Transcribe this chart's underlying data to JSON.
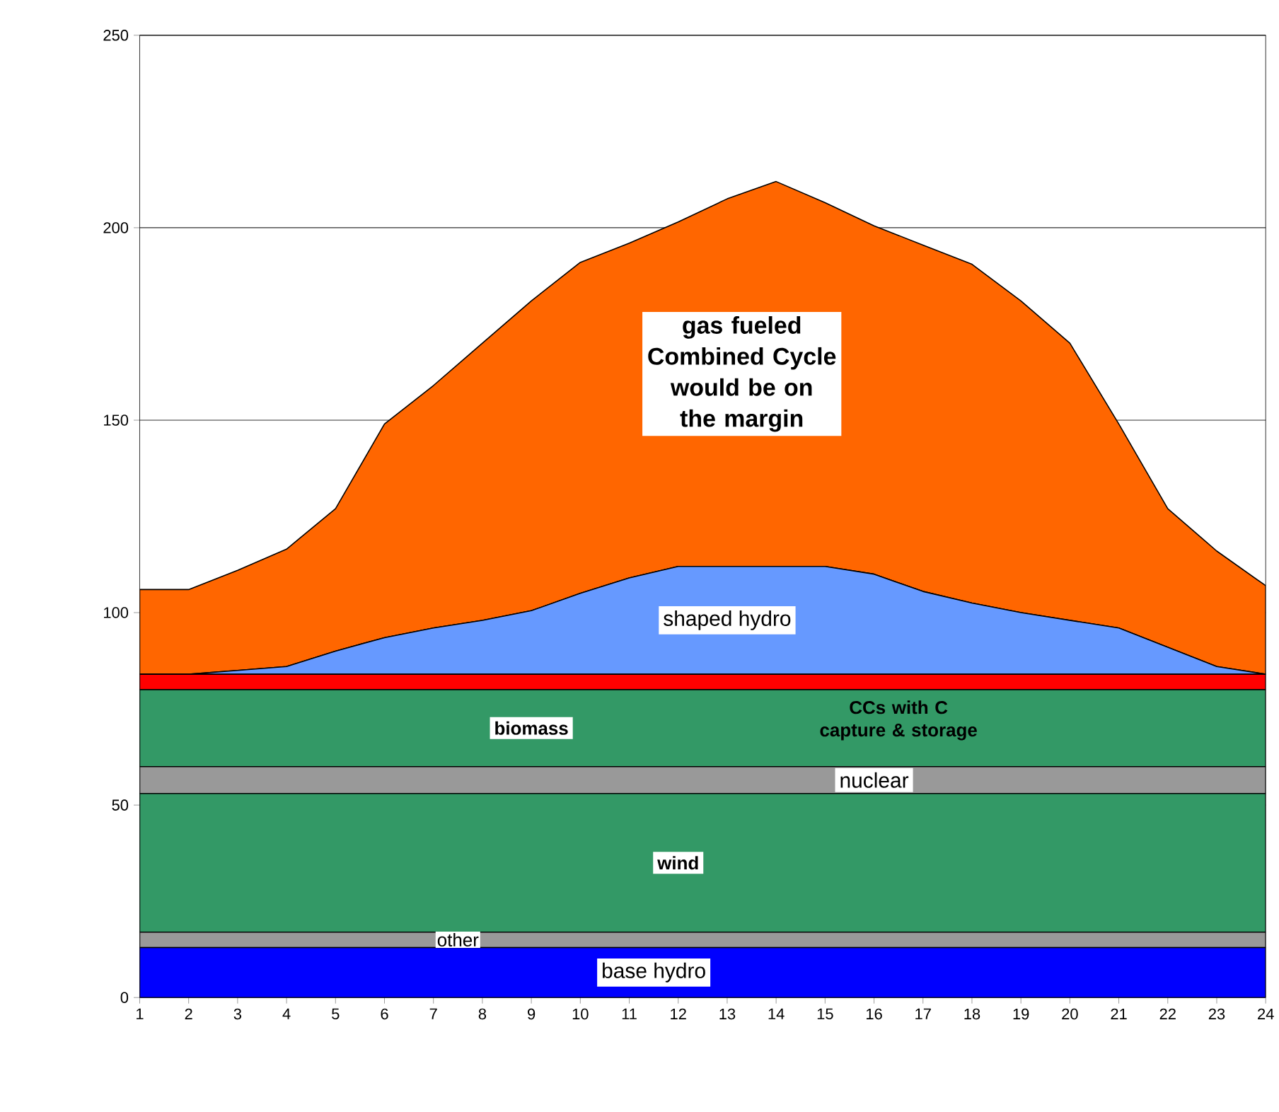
{
  "chart_data": {
    "type": "area",
    "stacked": true,
    "grid": "y",
    "categories": [
      "1",
      "2",
      "3",
      "4",
      "5",
      "6",
      "7",
      "8",
      "9",
      "10",
      "11",
      "12",
      "13",
      "14",
      "15",
      "16",
      "17",
      "18",
      "19",
      "20",
      "21",
      "22",
      "23",
      "24"
    ],
    "ylim": [
      0,
      250
    ],
    "yticks": [
      0,
      50,
      100,
      150,
      200,
      250
    ],
    "series": [
      {
        "name": "base hydro",
        "color": "#0000ff",
        "values": [
          13,
          13,
          13,
          13,
          13,
          13,
          13,
          13,
          13,
          13,
          13,
          13,
          13,
          13,
          13,
          13,
          13,
          13,
          13,
          13,
          13,
          13,
          13,
          13
        ]
      },
      {
        "name": "other",
        "color": "#999999",
        "values": [
          4,
          4,
          4,
          4,
          4,
          4,
          4,
          4,
          4,
          4,
          4,
          4,
          4,
          4,
          4,
          4,
          4,
          4,
          4,
          4,
          4,
          4,
          4,
          4
        ]
      },
      {
        "name": "wind",
        "color": "#339966",
        "values": [
          36,
          36,
          36,
          36,
          36,
          36,
          36,
          36,
          36,
          36,
          36,
          36,
          36,
          36,
          36,
          36,
          36,
          36,
          36,
          36,
          36,
          36,
          36,
          36
        ]
      },
      {
        "name": "nuclear",
        "color": "#999999",
        "values": [
          7,
          7,
          7,
          7,
          7,
          7,
          7,
          7,
          7,
          7,
          7,
          7,
          7,
          7,
          7,
          7,
          7,
          7,
          7,
          7,
          7,
          7,
          7,
          7
        ]
      },
      {
        "name": "biomass",
        "color": "#339966",
        "values": [
          20,
          20,
          20,
          20,
          20,
          20,
          20,
          20,
          20,
          20,
          20,
          20,
          20,
          20,
          20,
          20,
          20,
          20,
          20,
          20,
          20,
          20,
          20,
          20
        ]
      },
      {
        "name": "CCs with C capture & storage",
        "color": "#ff0000",
        "values": [
          4,
          4,
          4,
          4,
          4,
          4,
          4,
          4,
          4,
          4,
          4,
          4,
          4,
          4,
          4,
          4,
          4,
          4,
          4,
          4,
          4,
          4,
          4,
          4
        ]
      },
      {
        "name": "shaped hydro",
        "color": "#6699ff",
        "values": [
          0,
          0,
          1,
          2,
          6,
          9.5,
          12,
          14,
          16.5,
          21,
          25,
          28,
          28,
          28,
          28,
          26,
          21.5,
          18.5,
          16,
          14,
          12,
          7,
          2,
          0
        ]
      },
      {
        "name": "gas fueled Combined Cycle would be on the margin",
        "color": "#ff6600",
        "values": [
          22,
          22,
          26,
          30.5,
          37,
          55.5,
          63,
          72,
          80.5,
          86,
          87,
          89.5,
          95.5,
          100,
          94.5,
          90.5,
          90,
          88,
          81,
          72,
          53,
          36,
          30,
          23
        ]
      }
    ]
  }
}
